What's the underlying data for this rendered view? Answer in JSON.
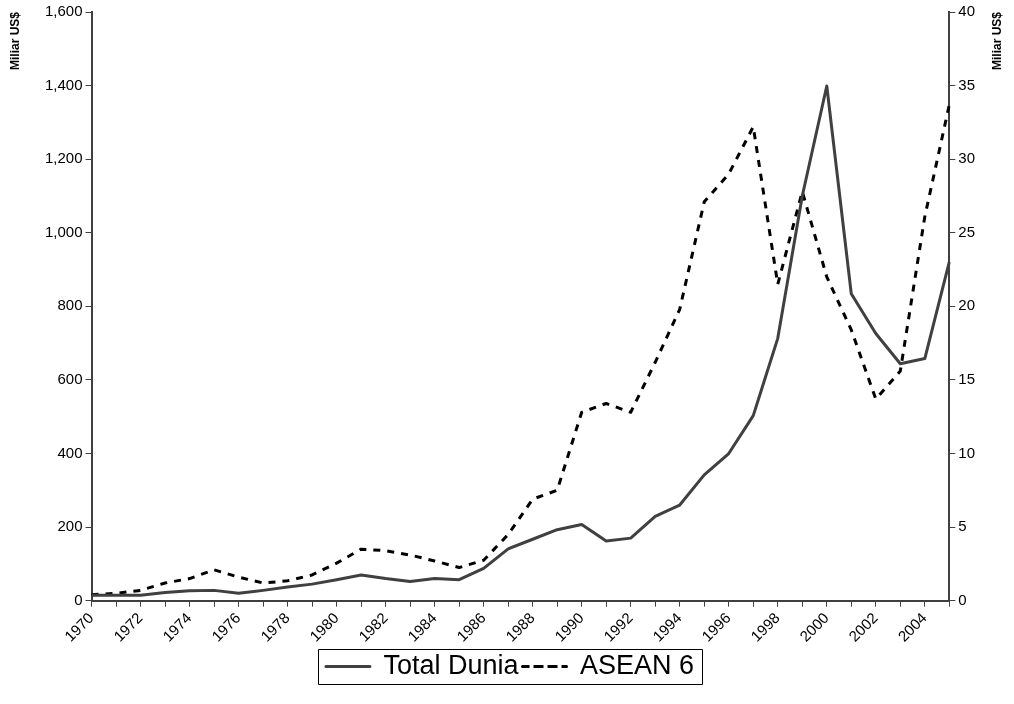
{
  "chart_data": {
    "type": "line",
    "ylabel": "Miliar US$",
    "y2label": "Miliar US$",
    "categories": [
      "1970",
      null,
      "1972",
      null,
      "1974",
      null,
      "1976",
      null,
      "1978",
      null,
      "1980",
      null,
      "1982",
      null,
      "1984",
      null,
      "1986",
      null,
      "1988",
      null,
      "1990",
      null,
      "1992",
      null,
      "1994",
      null,
      "1996",
      null,
      "1998",
      null,
      "2000",
      null,
      "2002",
      null,
      "2004",
      null
    ],
    "series": [
      {
        "name": "Total Dunia",
        "color": "#404040",
        "line_style": "solid",
        "values": [
          15,
          15,
          15,
          22,
          27,
          28,
          20,
          28,
          37,
          45,
          57,
          70,
          60,
          52,
          60,
          57,
          88,
          141,
          167,
          193,
          207,
          162,
          170,
          229,
          260,
          342,
          400,
          503,
          713,
          1100,
          1399,
          834,
          726,
          644,
          658,
          921
        ]
      },
      {
        "name": "ASEAN 6",
        "color": "#000000",
        "line_style": "dashed",
        "axis": "y2",
        "values": [
          0.4,
          0.5,
          0.7,
          1.2,
          1.5,
          2.1,
          1.6,
          1.2,
          1.35,
          1.75,
          2.55,
          3.5,
          3.4,
          3.1,
          2.7,
          2.25,
          2.75,
          4.5,
          6.9,
          7.5,
          12.8,
          13.4,
          12.8,
          16.2,
          19.8,
          27.1,
          29,
          32.2,
          21.5,
          27.8,
          22,
          18.4,
          13.7,
          15.6,
          26.1,
          33.7
        ]
      }
    ],
    "ylim": [
      0,
      1600
    ],
    "yticks": [
      0,
      {
        "value": 200,
        "label": "200"
      },
      {
        "value": 400,
        "label": "400"
      },
      {
        "value": 600,
        "label": "600"
      },
      {
        "value": 800,
        "label": "800"
      },
      {
        "value": 1000,
        "label": "1,000"
      },
      {
        "value": 1200,
        "label": "1,200"
      },
      {
        "value": 1400,
        "label": "1,400"
      },
      {
        "value": 1600,
        "label": "1,600"
      }
    ],
    "y2lim": [
      0,
      40
    ],
    "y2ticks": [
      0,
      5,
      10,
      15,
      20,
      25,
      30,
      35,
      40
    ],
    "grid": false,
    "legend": "bottom",
    "marker": "none"
  }
}
